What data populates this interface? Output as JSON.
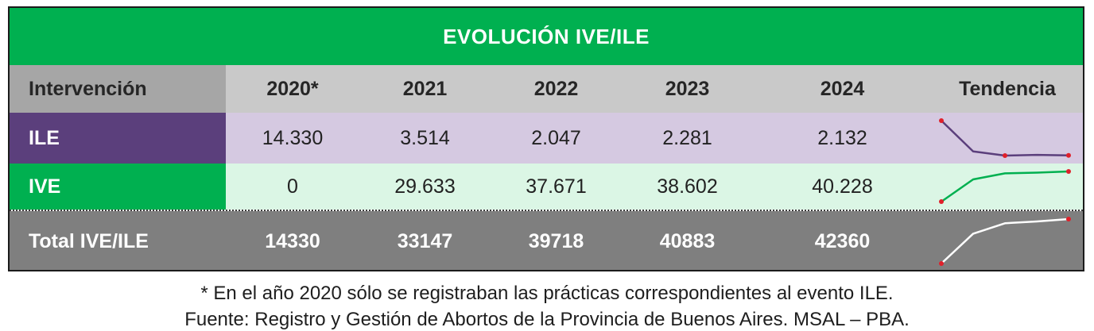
{
  "title": "EVOLUCIÓN IVE/ILE",
  "header": {
    "intervention": "Intervención",
    "years": [
      "2020*",
      "2021",
      "2022",
      "2023",
      "2024"
    ],
    "trend": "Tendencia"
  },
  "rows": [
    {
      "label": "ILE",
      "values": [
        "14.330",
        "3.514",
        "2.047",
        "2.281",
        "2.132"
      ]
    },
    {
      "label": "IVE",
      "values": [
        "0",
        "29.633",
        "37.671",
        "38.602",
        "40.228"
      ]
    },
    {
      "label": "Total IVE/ILE",
      "values": [
        "14330",
        "33147",
        "39718",
        "40883",
        "42360"
      ]
    }
  ],
  "footnote": "* En el año 2020 sólo se registraban las prácticas correspondientes al evento ILE.",
  "source": "Fuente: Registro y Gestión de Abortos de la Provincia de Buenos Aires. MSAL – PBA.",
  "colors": {
    "title_bg": "#00b050",
    "ile_label_bg": "#5b3f7c",
    "ile_row_bg": "#d5c9e1",
    "ive_label_bg": "#00b050",
    "ive_row_bg": "#dbf6e5",
    "total_bg": "#7f7f7f",
    "ile_line": "#5b3f7c",
    "ive_line": "#00b050",
    "total_line": "#ffffff",
    "marker": "#e0202a"
  },
  "chart_data": {
    "type": "table",
    "title": "EVOLUCIÓN IVE/ILE",
    "columns": [
      "Intervención",
      "2020*",
      "2021",
      "2022",
      "2023",
      "2024",
      "Tendencia"
    ],
    "categories": [
      "2020",
      "2021",
      "2022",
      "2023",
      "2024"
    ],
    "series": [
      {
        "name": "ILE",
        "values": [
          14330,
          3514,
          2047,
          2281,
          2132
        ],
        "color": "#5b3f7c"
      },
      {
        "name": "IVE",
        "values": [
          0,
          29633,
          37671,
          38602,
          40228
        ],
        "color": "#00b050"
      },
      {
        "name": "Total IVE/ILE",
        "values": [
          14330,
          33147,
          39718,
          40883,
          42360
        ],
        "color": "#ffffff"
      }
    ]
  }
}
